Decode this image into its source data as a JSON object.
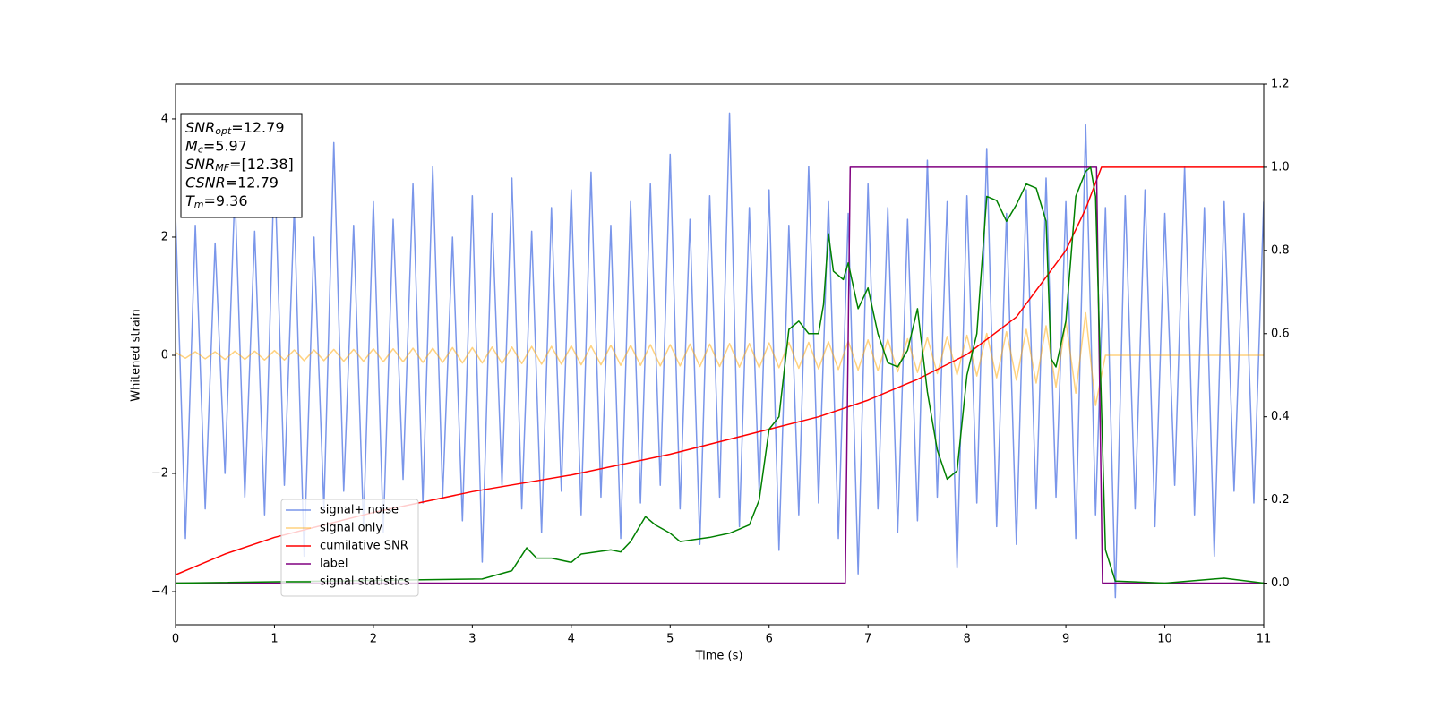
{
  "chart_data": {
    "type": "line",
    "xlabel": "Time (s)",
    "ylabel": "Whitened strain",
    "xlim": [
      0,
      11
    ],
    "xticks": [
      0,
      1,
      2,
      3,
      4,
      5,
      6,
      7,
      8,
      9,
      10,
      11
    ],
    "ylim": [
      -4.56,
      4.59
    ],
    "yticks": [
      {
        "value": -4,
        "label": "−4"
      },
      {
        "value": -2,
        "label": "−2"
      },
      0,
      2,
      4
    ],
    "y2lim": [
      -0.1,
      1.2
    ],
    "y2ticks": [
      {
        "value": 0,
        "label": "0.0"
      },
      0.2,
      0.4,
      0.6,
      0.8,
      {
        "value": 1,
        "label": "1.0"
      },
      1.2
    ],
    "legend": "lower left",
    "annotation": [
      {
        "main": "SNR",
        "sub": "opt",
        "rest": "=12.79"
      },
      {
        "main": "M",
        "sub": "c",
        "rest": "=5.97"
      },
      {
        "main": "SNR",
        "sub": "MF",
        "rest": "=[12.38]"
      },
      {
        "main": "CSNR",
        "rest": "=12.79"
      },
      {
        "main": "T",
        "sub": "m",
        "rest": "=9.36"
      }
    ],
    "x": [
      0,
      0.1,
      0.2,
      0.3,
      0.4,
      0.5,
      0.6,
      0.7,
      0.8,
      0.9,
      1,
      1.1,
      1.2,
      1.3,
      1.4,
      1.5,
      1.6,
      1.7,
      1.8,
      1.9,
      2,
      2.1,
      2.2,
      2.3,
      2.4,
      2.5,
      2.6,
      2.7,
      2.8,
      2.9,
      3,
      3.1,
      3.2,
      3.3,
      3.4,
      3.5,
      3.6,
      3.7,
      3.8,
      3.9,
      4,
      4.1,
      4.2,
      4.3,
      4.4,
      4.5,
      4.6,
      4.7,
      4.8,
      4.9,
      5,
      5.1,
      5.2,
      5.3,
      5.4,
      5.5,
      5.6,
      5.7,
      5.8,
      5.9,
      6,
      6.1,
      6.2,
      6.3,
      6.4,
      6.5,
      6.6,
      6.7,
      6.8,
      6.9,
      7,
      7.1,
      7.2,
      7.3,
      7.4,
      7.5,
      7.6,
      7.7,
      7.8,
      7.9,
      8,
      8.1,
      8.2,
      8.3,
      8.4,
      8.5,
      8.6,
      8.7,
      8.8,
      8.9,
      9,
      9.1,
      9.2,
      9.3,
      9.4,
      9.5,
      9.6,
      9.7,
      9.8,
      9.9,
      10,
      10.1,
      10.2,
      10.3,
      10.4,
      10.5,
      10.6,
      10.7,
      10.8,
      10.9,
      11
    ],
    "series": [
      {
        "name": "signal+ noise",
        "color": "#4169e1",
        "alpha": 0.7,
        "values": [
          2.4,
          -3.1,
          2.2,
          -2.6,
          1.9,
          -2.0,
          2.8,
          -2.4,
          2.1,
          -2.7,
          3.3,
          -2.2,
          2.5,
          -3.4,
          2.0,
          -2.6,
          3.6,
          -2.3,
          2.2,
          -2.9,
          2.6,
          -3.0,
          2.3,
          -2.1,
          2.9,
          -2.5,
          3.2,
          -2.4,
          2.0,
          -2.8,
          2.7,
          -3.5,
          2.4,
          -2.2,
          3.0,
          -2.6,
          2.1,
          -3.0,
          2.5,
          -2.3,
          2.8,
          -2.7,
          3.1,
          -2.4,
          2.2,
          -3.1,
          2.6,
          -2.5,
          2.9,
          -2.2,
          3.4,
          -2.6,
          2.3,
          -3.2,
          2.7,
          -2.4,
          4.1,
          -2.9,
          2.5,
          -2.3,
          2.8,
          -3.3,
          2.2,
          -2.7,
          3.2,
          -2.5,
          2.6,
          -3.1,
          2.4,
          -3.7,
          2.9,
          -2.6,
          2.5,
          -3.0,
          2.3,
          -2.8,
          3.3,
          -2.4,
          2.6,
          -3.6,
          2.7,
          -2.5,
          3.5,
          -2.9,
          2.4,
          -3.2,
          2.8,
          -2.6,
          3.0,
          -2.4,
          2.6,
          -3.1,
          3.9,
          -2.7,
          2.5,
          -4.1,
          2.7,
          -2.6,
          2.8,
          -2.9,
          2.4,
          -2.2,
          3.2,
          -2.7,
          2.5,
          -3.4,
          2.6,
          -2.3,
          2.4,
          -2.5,
          2.6
        ]
      },
      {
        "name": "signal only",
        "color": "#ffa500",
        "alpha": 0.5,
        "values": [
          0.05,
          -0.05,
          0.06,
          -0.06,
          0.06,
          -0.07,
          0.07,
          -0.07,
          0.07,
          -0.08,
          0.08,
          -0.08,
          0.09,
          -0.09,
          0.09,
          -0.09,
          0.1,
          -0.1,
          0.1,
          -0.1,
          0.11,
          -0.11,
          0.11,
          -0.11,
          0.12,
          -0.12,
          0.12,
          -0.12,
          0.13,
          -0.13,
          0.13,
          -0.13,
          0.14,
          -0.14,
          0.14,
          -0.14,
          0.15,
          -0.15,
          0.15,
          -0.15,
          0.16,
          -0.16,
          0.16,
          -0.16,
          0.17,
          -0.17,
          0.17,
          -0.17,
          0.18,
          -0.18,
          0.18,
          -0.18,
          0.19,
          -0.19,
          0.19,
          -0.19,
          0.2,
          -0.2,
          0.2,
          -0.21,
          0.21,
          -0.21,
          0.22,
          -0.22,
          0.22,
          -0.23,
          0.23,
          -0.24,
          0.24,
          -0.25,
          0.26,
          -0.26,
          0.27,
          -0.28,
          0.28,
          -0.29,
          0.3,
          -0.31,
          0.32,
          -0.33,
          0.34,
          -0.35,
          0.37,
          -0.38,
          0.4,
          -0.42,
          0.44,
          -0.47,
          0.5,
          -0.54,
          0.58,
          -0.64,
          0.72,
          -0.85,
          0,
          0,
          0,
          0,
          0,
          0,
          0,
          0,
          0,
          0,
          0,
          0,
          0,
          0,
          0,
          0,
          0
        ]
      },
      {
        "name": "cumilative SNR",
        "color": "#ff0000",
        "axis": "y2",
        "x": [
          0,
          0.2,
          0.5,
          1,
          2,
          3,
          4,
          5,
          6,
          6.5,
          7,
          7.5,
          8,
          8.5,
          9,
          9.2,
          9.36,
          11
        ],
        "values": [
          0.02,
          0.04,
          0.07,
          0.11,
          0.17,
          0.22,
          0.26,
          0.31,
          0.37,
          0.4,
          0.44,
          0.49,
          0.55,
          0.64,
          0.8,
          0.9,
          1.0,
          1.0
        ]
      },
      {
        "name": "label",
        "color": "#800080",
        "axis": "y2",
        "x": [
          0,
          6.77,
          6.82,
          9.31,
          9.37,
          11
        ],
        "values": [
          0,
          0,
          1,
          1,
          0,
          0
        ]
      },
      {
        "name": "signal statistics",
        "color": "#008000",
        "axis": "y2",
        "x": [
          0,
          3.1,
          3.4,
          3.55,
          3.65,
          3.8,
          4,
          4.1,
          4.4,
          4.5,
          4.6,
          4.75,
          4.85,
          5,
          5.1,
          5.4,
          5.6,
          5.7,
          5.8,
          5.9,
          6,
          6.1,
          6.2,
          6.3,
          6.4,
          6.5,
          6.55,
          6.6,
          6.65,
          6.75,
          6.8,
          6.9,
          7,
          7.1,
          7.2,
          7.3,
          7.4,
          7.5,
          7.6,
          7.7,
          7.8,
          7.9,
          8,
          8.1,
          8.2,
          8.3,
          8.4,
          8.5,
          8.6,
          8.7,
          8.8,
          8.85,
          8.9,
          9,
          9.1,
          9.2,
          9.25,
          9.3,
          9.4,
          9.5,
          10,
          10.5,
          10.6,
          11
        ],
        "values": [
          0,
          0.01,
          0.03,
          0.085,
          0.06,
          0.06,
          0.05,
          0.07,
          0.08,
          0.075,
          0.1,
          0.16,
          0.14,
          0.12,
          0.1,
          0.11,
          0.12,
          0.13,
          0.14,
          0.2,
          0.37,
          0.4,
          0.61,
          0.63,
          0.6,
          0.6,
          0.67,
          0.84,
          0.75,
          0.73,
          0.77,
          0.66,
          0.71,
          0.6,
          0.53,
          0.52,
          0.56,
          0.66,
          0.46,
          0.32,
          0.25,
          0.27,
          0.5,
          0.6,
          0.93,
          0.92,
          0.87,
          0.91,
          0.96,
          0.95,
          0.87,
          0.54,
          0.52,
          0.63,
          0.93,
          0.99,
          1.0,
          0.93,
          0.08,
          0.005,
          0,
          0.01,
          0.012,
          0
        ]
      }
    ]
  }
}
